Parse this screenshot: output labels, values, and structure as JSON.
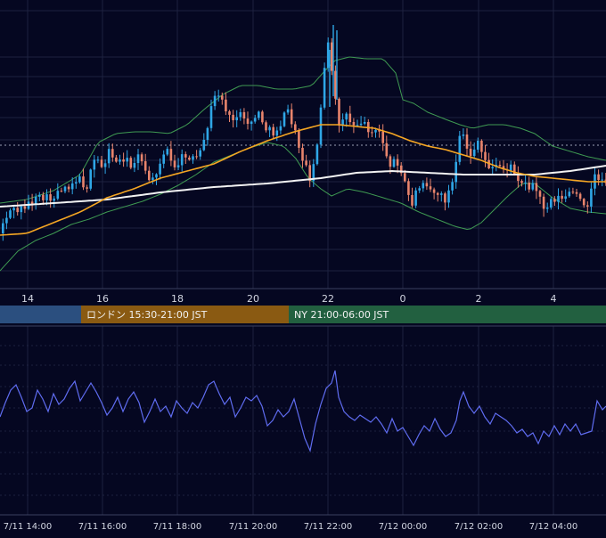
{
  "colors": {
    "background": "#050721",
    "grid": "#1d2240",
    "candle_up": "#2fa6e6",
    "candle_down": "#e8846c",
    "ma_short": "#f5a623",
    "ma_long": "#f2f2f2",
    "bollinger": "#3f9a52",
    "oscillator": "#5f6cf0",
    "session_tokyo": "#2b4f7f",
    "session_london": "#8a5a12",
    "session_ny": "#226040"
  },
  "main_axis": {
    "ticks": [
      "14",
      "16",
      "18",
      "20",
      "22",
      "0",
      "2",
      "4"
    ]
  },
  "sessions": [
    {
      "label": "",
      "color": "#2b4f7f",
      "start": 0,
      "end": 91
    },
    {
      "label": "ロンドン 15:30-21:00 JST",
      "color": "#8a5a12",
      "start": 91,
      "end": 324
    },
    {
      "label": "NY 21:00-06:00 JST",
      "color": "#226040",
      "start": 324,
      "end": 680
    }
  ],
  "bottom_axis": {
    "ticks": [
      "7/11 14:00",
      "7/11 16:00",
      "7/11 18:00",
      "7/11 20:00",
      "7/11 22:00",
      "7/12 00:00",
      "7/12 02:00",
      "7/12 04:00"
    ]
  },
  "chart_data": {
    "type": "candlestick",
    "x_ticks": [
      "14",
      "16",
      "18",
      "20",
      "22",
      "0",
      "2",
      "4"
    ],
    "time_ticks": [
      "7/11 14:00",
      "7/11 16:00",
      "7/11 18:00",
      "7/11 20:00",
      "7/11 22:00",
      "7/12 00:00",
      "7/12 02:00",
      "7/12 04:00"
    ],
    "grid": true,
    "price_anchors": [
      [
        0,
        262
      ],
      [
        6,
        250
      ],
      [
        14,
        236
      ],
      [
        24,
        236
      ],
      [
        32,
        230
      ],
      [
        40,
        226
      ],
      [
        50,
        222
      ],
      [
        60,
        224
      ],
      [
        70,
        212
      ],
      [
        80,
        208
      ],
      [
        90,
        200
      ],
      [
        100,
        210
      ],
      [
        110,
        176
      ],
      [
        118,
        188
      ],
      [
        126,
        168
      ],
      [
        134,
        184
      ],
      [
        142,
        176
      ],
      [
        150,
        188
      ],
      [
        158,
        170
      ],
      [
        166,
        196
      ],
      [
        174,
        204
      ],
      [
        182,
        180
      ],
      [
        190,
        168
      ],
      [
        198,
        192
      ],
      [
        206,
        178
      ],
      [
        214,
        174
      ],
      [
        222,
        180
      ],
      [
        230,
        170
      ],
      [
        238,
        128
      ],
      [
        246,
        102
      ],
      [
        254,
        116
      ],
      [
        262,
        138
      ],
      [
        270,
        126
      ],
      [
        278,
        140
      ],
      [
        286,
        134
      ],
      [
        294,
        128
      ],
      [
        302,
        146
      ],
      [
        310,
        150
      ],
      [
        318,
        138
      ],
      [
        326,
        124
      ],
      [
        334,
        150
      ],
      [
        342,
        176
      ],
      [
        350,
        200
      ],
      [
        356,
        182
      ],
      [
        362,
        128
      ],
      [
        366,
        90
      ],
      [
        370,
        42
      ],
      [
        374,
        74
      ],
      [
        378,
        104
      ],
      [
        382,
        140
      ],
      [
        390,
        126
      ],
      [
        398,
        140
      ],
      [
        406,
        136
      ],
      [
        414,
        142
      ],
      [
        422,
        150
      ],
      [
        430,
        146
      ],
      [
        438,
        186
      ],
      [
        444,
        178
      ],
      [
        450,
        190
      ],
      [
        458,
        206
      ],
      [
        464,
        232
      ],
      [
        470,
        214
      ],
      [
        478,
        200
      ],
      [
        486,
        212
      ],
      [
        494,
        218
      ],
      [
        502,
        224
      ],
      [
        510,
        208
      ],
      [
        516,
        178
      ],
      [
        520,
        146
      ],
      [
        526,
        164
      ],
      [
        532,
        176
      ],
      [
        538,
        160
      ],
      [
        546,
        178
      ],
      [
        554,
        190
      ],
      [
        562,
        186
      ],
      [
        570,
        190
      ],
      [
        578,
        188
      ],
      [
        586,
        202
      ],
      [
        594,
        208
      ],
      [
        602,
        208
      ],
      [
        608,
        220
      ],
      [
        614,
        234
      ],
      [
        622,
        222
      ],
      [
        630,
        222
      ],
      [
        638,
        220
      ],
      [
        646,
        216
      ],
      [
        654,
        226
      ],
      [
        662,
        228
      ],
      [
        670,
        198
      ],
      [
        676,
        200
      ],
      [
        680,
        202
      ]
    ],
    "ma_short_anchors": [
      [
        0,
        264
      ],
      [
        30,
        262
      ],
      [
        60,
        250
      ],
      [
        90,
        238
      ],
      [
        120,
        222
      ],
      [
        150,
        212
      ],
      [
        180,
        200
      ],
      [
        210,
        192
      ],
      [
        240,
        184
      ],
      [
        270,
        170
      ],
      [
        300,
        158
      ],
      [
        330,
        148
      ],
      [
        360,
        140
      ],
      [
        380,
        140
      ],
      [
        400,
        142
      ],
      [
        420,
        144
      ],
      [
        440,
        150
      ],
      [
        460,
        158
      ],
      [
        480,
        164
      ],
      [
        500,
        168
      ],
      [
        520,
        174
      ],
      [
        540,
        180
      ],
      [
        560,
        188
      ],
      [
        580,
        194
      ],
      [
        600,
        198
      ],
      [
        620,
        200
      ],
      [
        640,
        202
      ],
      [
        660,
        204
      ],
      [
        680,
        204
      ]
    ],
    "ma_long_anchors": [
      [
        0,
        232
      ],
      [
        60,
        228
      ],
      [
        120,
        224
      ],
      [
        180,
        216
      ],
      [
        240,
        210
      ],
      [
        300,
        206
      ],
      [
        360,
        200
      ],
      [
        400,
        194
      ],
      [
        440,
        192
      ],
      [
        480,
        194
      ],
      [
        520,
        196
      ],
      [
        560,
        196
      ],
      [
        600,
        196
      ],
      [
        640,
        192
      ],
      [
        680,
        186
      ]
    ],
    "bb_upper_anchors": [
      [
        0,
        228
      ],
      [
        30,
        224
      ],
      [
        60,
        214
      ],
      [
        90,
        196
      ],
      [
        110,
        160
      ],
      [
        130,
        150
      ],
      [
        150,
        148
      ],
      [
        170,
        148
      ],
      [
        190,
        150
      ],
      [
        210,
        140
      ],
      [
        230,
        122
      ],
      [
        250,
        106
      ],
      [
        270,
        96
      ],
      [
        290,
        96
      ],
      [
        310,
        100
      ],
      [
        330,
        100
      ],
      [
        350,
        96
      ],
      [
        364,
        80
      ],
      [
        376,
        68
      ],
      [
        392,
        64
      ],
      [
        410,
        66
      ],
      [
        430,
        66
      ],
      [
        444,
        82
      ],
      [
        452,
        112
      ],
      [
        464,
        116
      ],
      [
        480,
        126
      ],
      [
        500,
        134
      ],
      [
        516,
        140
      ],
      [
        530,
        144
      ],
      [
        548,
        140
      ],
      [
        566,
        140
      ],
      [
        584,
        144
      ],
      [
        600,
        150
      ],
      [
        620,
        164
      ],
      [
        640,
        170
      ],
      [
        660,
        176
      ],
      [
        680,
        180
      ]
    ],
    "bb_lower_anchors": [
      [
        0,
        304
      ],
      [
        20,
        282
      ],
      [
        40,
        270
      ],
      [
        60,
        262
      ],
      [
        80,
        252
      ],
      [
        100,
        246
      ],
      [
        120,
        238
      ],
      [
        140,
        232
      ],
      [
        160,
        226
      ],
      [
        180,
        218
      ],
      [
        200,
        208
      ],
      [
        220,
        196
      ],
      [
        240,
        182
      ],
      [
        260,
        174
      ],
      [
        280,
        166
      ],
      [
        300,
        160
      ],
      [
        318,
        164
      ],
      [
        332,
        178
      ],
      [
        346,
        200
      ],
      [
        360,
        212
      ],
      [
        372,
        220
      ],
      [
        390,
        212
      ],
      [
        410,
        216
      ],
      [
        430,
        222
      ],
      [
        450,
        228
      ],
      [
        470,
        238
      ],
      [
        490,
        246
      ],
      [
        510,
        254
      ],
      [
        526,
        258
      ],
      [
        540,
        250
      ],
      [
        556,
        234
      ],
      [
        570,
        220
      ],
      [
        586,
        206
      ],
      [
        600,
        206
      ],
      [
        620,
        222
      ],
      [
        640,
        234
      ],
      [
        660,
        238
      ],
      [
        680,
        240
      ]
    ],
    "oscillator_anchors": [
      [
        0,
        468
      ],
      [
        6,
        452
      ],
      [
        12,
        438
      ],
      [
        18,
        432
      ],
      [
        24,
        446
      ],
      [
        30,
        462
      ],
      [
        36,
        458
      ],
      [
        42,
        438
      ],
      [
        48,
        448
      ],
      [
        54,
        462
      ],
      [
        60,
        442
      ],
      [
        66,
        454
      ],
      [
        72,
        448
      ],
      [
        78,
        436
      ],
      [
        84,
        428
      ],
      [
        90,
        450
      ],
      [
        96,
        440
      ],
      [
        102,
        430
      ],
      [
        108,
        440
      ],
      [
        114,
        452
      ],
      [
        120,
        466
      ],
      [
        126,
        458
      ],
      [
        132,
        446
      ],
      [
        138,
        462
      ],
      [
        144,
        448
      ],
      [
        150,
        440
      ],
      [
        156,
        452
      ],
      [
        162,
        474
      ],
      [
        168,
        462
      ],
      [
        174,
        448
      ],
      [
        180,
        462
      ],
      [
        186,
        456
      ],
      [
        192,
        468
      ],
      [
        198,
        450
      ],
      [
        204,
        458
      ],
      [
        210,
        464
      ],
      [
        216,
        452
      ],
      [
        222,
        458
      ],
      [
        228,
        446
      ],
      [
        234,
        432
      ],
      [
        240,
        428
      ],
      [
        246,
        442
      ],
      [
        252,
        454
      ],
      [
        258,
        446
      ],
      [
        264,
        468
      ],
      [
        270,
        458
      ],
      [
        276,
        446
      ],
      [
        282,
        450
      ],
      [
        288,
        444
      ],
      [
        294,
        456
      ],
      [
        300,
        478
      ],
      [
        306,
        472
      ],
      [
        312,
        460
      ],
      [
        318,
        468
      ],
      [
        324,
        462
      ],
      [
        330,
        448
      ],
      [
        336,
        470
      ],
      [
        342,
        492
      ],
      [
        348,
        506
      ],
      [
        354,
        476
      ],
      [
        360,
        454
      ],
      [
        366,
        436
      ],
      [
        372,
        430
      ],
      [
        376,
        416
      ],
      [
        380,
        446
      ],
      [
        386,
        462
      ],
      [
        392,
        468
      ],
      [
        398,
        472
      ],
      [
        404,
        466
      ],
      [
        410,
        470
      ],
      [
        416,
        474
      ],
      [
        422,
        468
      ],
      [
        428,
        476
      ],
      [
        434,
        486
      ],
      [
        440,
        470
      ],
      [
        446,
        484
      ],
      [
        452,
        480
      ],
      [
        458,
        490
      ],
      [
        464,
        500
      ],
      [
        470,
        488
      ],
      [
        476,
        478
      ],
      [
        482,
        484
      ],
      [
        488,
        470
      ],
      [
        494,
        482
      ],
      [
        500,
        490
      ],
      [
        506,
        486
      ],
      [
        512,
        472
      ],
      [
        516,
        450
      ],
      [
        520,
        440
      ],
      [
        526,
        456
      ],
      [
        532,
        464
      ],
      [
        538,
        456
      ],
      [
        544,
        468
      ],
      [
        550,
        476
      ],
      [
        556,
        464
      ],
      [
        562,
        468
      ],
      [
        568,
        472
      ],
      [
        574,
        478
      ],
      [
        580,
        486
      ],
      [
        586,
        482
      ],
      [
        592,
        490
      ],
      [
        598,
        486
      ],
      [
        604,
        498
      ],
      [
        610,
        484
      ],
      [
        616,
        490
      ],
      [
        622,
        478
      ],
      [
        628,
        488
      ],
      [
        634,
        476
      ],
      [
        640,
        484
      ],
      [
        646,
        476
      ],
      [
        652,
        488
      ],
      [
        658,
        486
      ],
      [
        664,
        484
      ],
      [
        670,
        450
      ],
      [
        676,
        460
      ],
      [
        680,
        456
      ]
    ]
  }
}
